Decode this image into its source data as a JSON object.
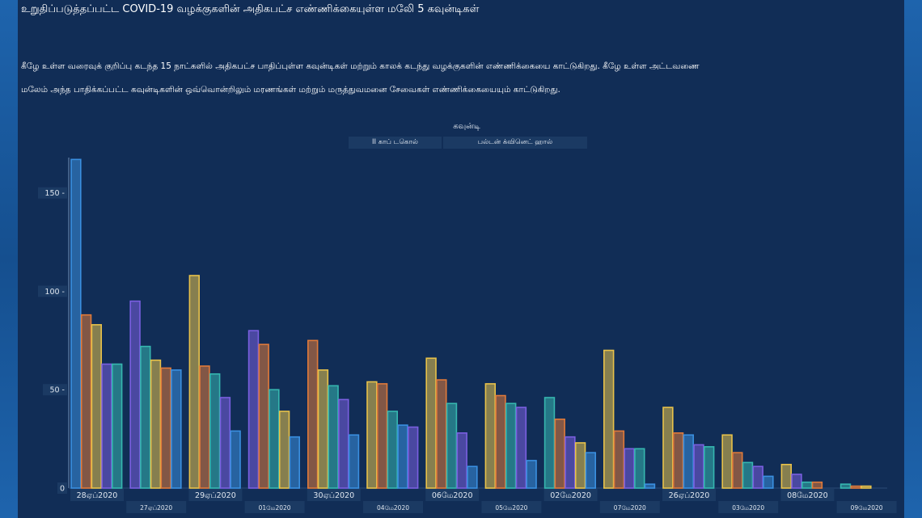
{
  "header": {
    "title": "உறுதிப்படுத்தப்பட்ட COVID-19 வழக்குகளின் அதிகபட்ச எண்ணிக்கையுள்ள மலேி 5 கவுன்டிகள்",
    "description_line1": "கீழே உள்ள வரைவுக் குறிப்பு கடந்த 15 நாட்களில் அதிகபட்ச பாதிப்புள்ள கவுன்டிகள் மற்றும் காலக் கடந்து வழக்குகளின் எண்ணிக்கையை காட்டுகிறது. கீழே உள்ள அட்டவணை",
    "description_line2": "மலேம் அந்த பாதிக்கப்பட்ட கவுன்டிகளின் ஒவ்வொன்றிலும் மரணங்கள் மற்றும் மருத்துவமனை சேவைகள் எண்ணிக்கையையும் காட்டுகிறது."
  },
  "legend": {
    "title": "கவுன்டி",
    "items": [
      "II காப் டகொல்",
      "பல்டன் க்வினெட் ஹால்"
    ]
  },
  "colors": {
    "series": [
      "#3a8fe0",
      "#e07a3a",
      "#e8c24a",
      "#7a5fe0",
      "#36b7b0"
    ],
    "panel": "#112d56",
    "label_bg": "#1b3a63",
    "text": "#dfe6ef"
  },
  "chart_data": {
    "type": "bar",
    "ylim": [
      0,
      170
    ],
    "yticks": [
      0,
      50,
      100,
      150
    ],
    "ytick_labels": [
      "0",
      "50 -",
      "100 -",
      "150 -"
    ],
    "categories": [
      "28ஏப்2020",
      "27ஏப்2020",
      "29ஏப்2020",
      "01மே2020",
      "30ஏப்2020",
      "04மே2020",
      "06மே2020",
      "05மே2020",
      "02மே2020",
      "07மே2020",
      "26ஏப்2020",
      "03மே2020",
      "08மே2020",
      "09மே2020"
    ],
    "bar_colors": [
      [
        "blue",
        "orange",
        "yellow",
        "purple",
        "teal"
      ],
      [
        "purple",
        "teal",
        "yellow",
        "orange",
        "blue"
      ],
      [
        "yellow",
        "orange",
        "teal",
        "purple",
        "blue"
      ],
      [
        "purple",
        "orange",
        "teal",
        "yellow",
        "blue"
      ],
      [
        "orange",
        "yellow",
        "teal",
        "purple",
        "blue"
      ],
      [
        "yellow",
        "orange",
        "teal",
        "blue",
        "purple"
      ],
      [
        "yellow",
        "orange",
        "teal",
        "purple",
        "blue"
      ],
      [
        "yellow",
        "orange",
        "teal",
        "purple",
        "blue"
      ],
      [
        "teal",
        "orange",
        "purple",
        "yellow",
        "blue"
      ],
      [
        "yellow",
        "orange",
        "purple",
        "teal",
        "blue"
      ],
      [
        "yellow",
        "orange",
        "blue",
        "purple",
        "teal"
      ],
      [
        "yellow",
        "orange",
        "teal",
        "purple",
        "blue"
      ],
      [
        "yellow",
        "purple",
        "teal",
        "orange"
      ],
      [
        "teal",
        "orange",
        "yellow"
      ]
    ],
    "bar_values": [
      [
        167,
        88,
        83,
        63,
        63
      ],
      [
        95,
        72,
        65,
        61,
        60
      ],
      [
        108,
        62,
        58,
        46,
        29
      ],
      [
        80,
        73,
        50,
        39,
        26
      ],
      [
        75,
        60,
        52,
        45,
        27
      ],
      [
        54,
        53,
        39,
        32,
        31
      ],
      [
        66,
        55,
        43,
        28,
        11
      ],
      [
        53,
        47,
        43,
        41,
        14
      ],
      [
        46,
        35,
        26,
        23,
        18
      ],
      [
        70,
        29,
        20,
        20,
        2
      ],
      [
        41,
        28,
        27,
        22,
        21
      ],
      [
        27,
        18,
        13,
        11,
        6
      ],
      [
        12,
        7,
        3,
        3
      ],
      [
        2,
        1,
        1
      ]
    ]
  }
}
